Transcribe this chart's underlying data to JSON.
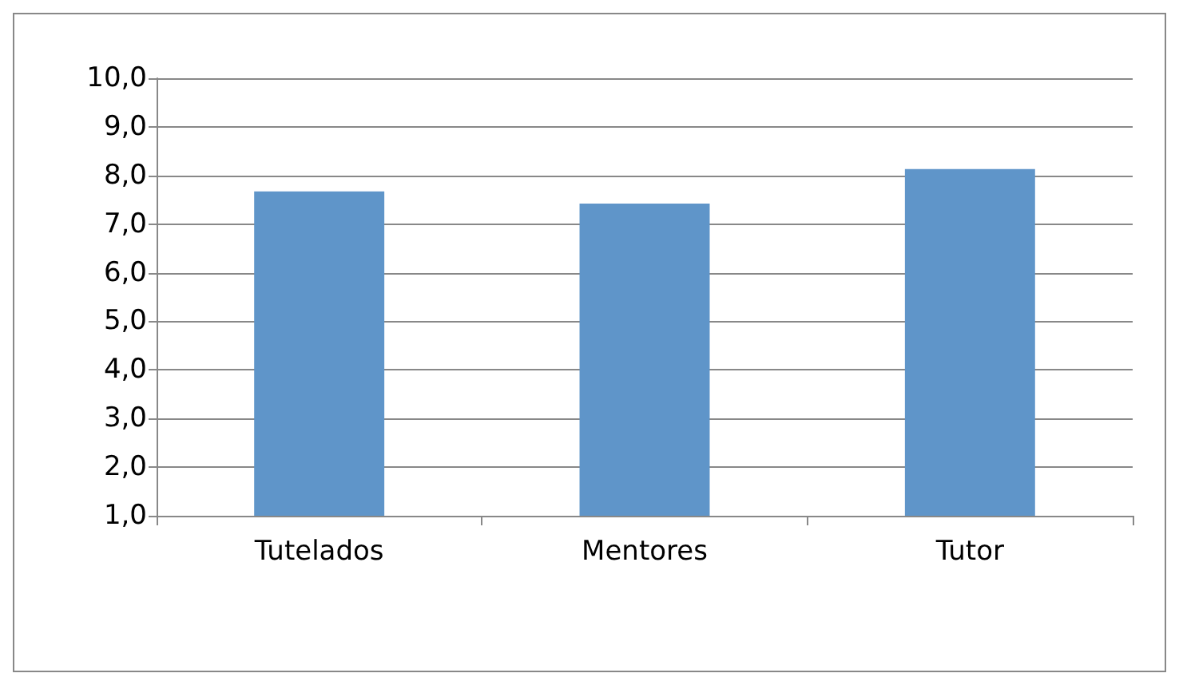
{
  "chart_data": {
    "type": "bar",
    "categories": [
      "Tutelados",
      "Mentores",
      "Tutor"
    ],
    "values": [
      7.67,
      7.42,
      8.13
    ],
    "color": "#5f95c9",
    "ylim": [
      1,
      10
    ],
    "yticks": [
      {
        "value": 1,
        "label": "1,0"
      },
      {
        "value": 2,
        "label": "2,0"
      },
      {
        "value": 3,
        "label": "3,0"
      },
      {
        "value": 4,
        "label": "4,0"
      },
      {
        "value": 5,
        "label": "5,0"
      },
      {
        "value": 6,
        "label": "6,0"
      },
      {
        "value": 7,
        "label": "7,0"
      },
      {
        "value": 8,
        "label": "8,0"
      },
      {
        "value": 9,
        "label": "9,0"
      },
      {
        "value": 10,
        "label": "10,0"
      }
    ],
    "grid": "y"
  }
}
